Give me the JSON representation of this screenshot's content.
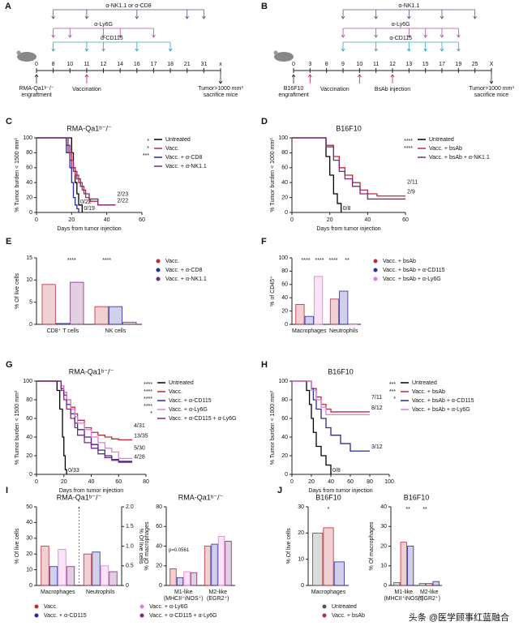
{
  "schemes": [
    {
      "label": "A",
      "days": [
        0,
        8,
        10,
        11,
        12,
        14,
        16,
        17,
        18,
        21,
        31,
        "x"
      ],
      "treatments": [
        {
          "name": "α-NK1.1 or α-CD8",
          "color": "#55557a",
          "on_days": [
            8,
            11,
            16,
            21,
            31
          ]
        },
        {
          "name": "α-Ly6G",
          "color": "#b04ca8",
          "on_days": [
            8,
            10,
            12,
            14,
            17
          ]
        },
        {
          "name": "α-CD115",
          "color": "#3a9fbf",
          "on_days": [
            8,
            11,
            12,
            16,
            18
          ]
        }
      ],
      "start_label": [
        "RMA-Qa1ᵇ⁻/⁻",
        "engraftment"
      ],
      "events": [
        {
          "name": "Vaccination",
          "on_days": [
            11
          ]
        }
      ],
      "end_label": [
        "Tumor>1000 mm³",
        "sacrifice mice"
      ]
    },
    {
      "label": "B",
      "days": [
        0,
        3,
        8,
        9,
        10,
        11,
        12,
        13,
        15,
        17,
        19,
        25,
        "X"
      ],
      "treatments": [
        {
          "name": "α-NK1.1",
          "color": "#55557a",
          "on_days": [
            9,
            11,
            13,
            17,
            25
          ]
        },
        {
          "name": "α-Ly6G",
          "color": "#b04ca8",
          "on_days": [
            9,
            11,
            13,
            15,
            17,
            19
          ]
        },
        {
          "name": "α-CD115",
          "color": "#3a9fbf",
          "on_days": [
            9,
            11,
            13,
            15,
            17,
            19
          ]
        }
      ],
      "start_label": [
        "B16F10",
        "engraftment"
      ],
      "events": [
        {
          "name": "Vaccination",
          "on_days": [
            3,
            10
          ]
        },
        {
          "name": "BsAb injection",
          "on_days": [
            12
          ]
        }
      ],
      "end_label": [
        "Tumor>1000 mm³",
        "sacrifice mice"
      ]
    }
  ],
  "chart_data": [
    {
      "type": "step",
      "label": "C",
      "title": "RMA-Qa1ᵇ⁻/⁻",
      "ylabel": "% Tumor burden < 1500 mm³",
      "xlabel": "Days from tumor injection",
      "xlim": [
        0,
        60
      ],
      "xticks": [
        0,
        20,
        40,
        60
      ],
      "ylim": [
        0,
        100
      ],
      "yticks": [
        0,
        20,
        40,
        60,
        80,
        100
      ],
      "legend": "right",
      "significance": [
        "*",
        "*",
        "***"
      ],
      "series": [
        {
          "name": "Untreated",
          "color": "#000000",
          "x": [
            0,
            18,
            20,
            21,
            22,
            23,
            24,
            26
          ],
          "values": [
            100,
            100,
            80,
            60,
            40,
            25,
            10,
            0
          ],
          "end_label": "0/19"
        },
        {
          "name": "Vacc.",
          "color": "#c0283c",
          "x": [
            0,
            17,
            18,
            20,
            22,
            24,
            26,
            28,
            30,
            35,
            45
          ],
          "values": [
            100,
            90,
            80,
            60,
            50,
            40,
            30,
            20,
            15,
            10,
            10
          ],
          "end_label": "2/22"
        },
        {
          "name": "Vacc. + α-CD8",
          "color": "#2a2a9a",
          "x": [
            0,
            17,
            19,
            20,
            21,
            22,
            23,
            24
          ],
          "values": [
            100,
            80,
            60,
            40,
            20,
            10,
            5,
            0
          ],
          "end_label": "0/22"
        },
        {
          "name": "Vacc. + α-NK1.1",
          "color": "#7b2a7b",
          "x": [
            0,
            18,
            19,
            21,
            23,
            25,
            27,
            30,
            35,
            45
          ],
          "values": [
            100,
            90,
            70,
            55,
            45,
            35,
            25,
            18,
            10,
            10
          ],
          "end_label": "2/23"
        }
      ]
    },
    {
      "type": "step",
      "label": "D",
      "title": "B16F10",
      "ylabel": "% Tumor burden < 1000 mm³",
      "xlabel": "Days from tumor injection",
      "xlim": [
        0,
        60
      ],
      "xticks": [
        0,
        20,
        40,
        60
      ],
      "ylim": [
        0,
        100
      ],
      "yticks": [
        0,
        20,
        40,
        60,
        80,
        100
      ],
      "legend": "right",
      "significance": [
        "****",
        "****"
      ],
      "series": [
        {
          "name": "Untreated",
          "color": "#000000",
          "x": [
            0,
            18,
            20,
            22,
            24,
            26
          ],
          "values": [
            100,
            75,
            50,
            25,
            12,
            0
          ],
          "end_label": "0/8"
        },
        {
          "name": "Vacc. + bsAb",
          "color": "#c0283c",
          "x": [
            0,
            18,
            22,
            25,
            28,
            32,
            36,
            40,
            45,
            60
          ],
          "values": [
            100,
            90,
            75,
            60,
            50,
            40,
            30,
            25,
            22,
            22
          ],
          "end_label": "2/9"
        },
        {
          "name": "Vacc. + bsAb + α-NK1.1",
          "color": "#7b2a7b",
          "x": [
            0,
            18,
            22,
            25,
            28,
            32,
            36,
            40,
            60
          ],
          "values": [
            100,
            88,
            70,
            55,
            45,
            35,
            25,
            18,
            18
          ],
          "end_label": "2/11"
        }
      ]
    },
    {
      "type": "bar",
      "label": "E",
      "ylabel": "% Of live cells",
      "categories": [
        "CD8⁺ T cells",
        "NK cells"
      ],
      "ylim": [
        0,
        15
      ],
      "yticks": [
        0,
        5,
        10,
        15
      ],
      "legend": "right",
      "significance": [
        "****",
        "****"
      ],
      "series": [
        {
          "name": "Vacc.",
          "color": "#c0283c",
          "values": [
            9,
            4
          ]
        },
        {
          "name": "Vacc. + α-CD8",
          "color": "#2a2a9a",
          "values": [
            0.2,
            4
          ]
        },
        {
          "name": "Vacc. + α-NK1.1",
          "color": "#7b2a7b",
          "values": [
            9.5,
            0.5
          ]
        }
      ]
    },
    {
      "type": "bar",
      "label": "F",
      "ylabel": "% of CD45⁺",
      "categories": [
        "Macrophages",
        "Neutrophils"
      ],
      "ylim": [
        0,
        100
      ],
      "yticks": [
        0,
        20,
        40,
        60,
        80,
        100
      ],
      "legend": "right",
      "significance": [
        "****",
        "****",
        "****",
        "**"
      ],
      "series": [
        {
          "name": "Vacc. + bsAb",
          "color": "#c0283c",
          "values": [
            30,
            38
          ]
        },
        {
          "name": "Vacc. + bsAb + α-CD115",
          "color": "#2a2a9a",
          "values": [
            12,
            50
          ]
        },
        {
          "name": "Vacc. + bsAb + α-Ly6G",
          "color": "#e87ad9",
          "values": [
            72,
            1
          ]
        }
      ]
    },
    {
      "type": "step",
      "label": "G",
      "title": "RMA-Qa1ᵇ⁻/⁻",
      "ylabel": "% Tumor burden < 1500 mm³",
      "xlabel": "Days from tumor injection",
      "xlim": [
        0,
        80
      ],
      "xticks": [
        0,
        20,
        40,
        60,
        80
      ],
      "ylim": [
        0,
        100
      ],
      "yticks": [
        0,
        20,
        40,
        60,
        80,
        100
      ],
      "legend": "right",
      "significance": [
        "****",
        "****",
        "****",
        "****",
        "*"
      ],
      "series": [
        {
          "name": "Untreated",
          "color": "#000000",
          "x": [
            0,
            15,
            17,
            19,
            20,
            21,
            22
          ],
          "values": [
            100,
            90,
            70,
            40,
            20,
            5,
            0
          ],
          "end_label": "0/33"
        },
        {
          "name": "Vacc.",
          "color": "#c0283c",
          "x": [
            0,
            18,
            20,
            22,
            25,
            28,
            30,
            35,
            40,
            45,
            50,
            55,
            60,
            65,
            70
          ],
          "values": [
            100,
            95,
            88,
            80,
            72,
            65,
            58,
            50,
            45,
            42,
            40,
            38,
            37,
            37,
            37
          ],
          "end_label": "13/35"
        },
        {
          "name": "Vacc. + α-CD115",
          "color": "#2a2a9a",
          "x": [
            0,
            18,
            20,
            22,
            25,
            28,
            30,
            35,
            40,
            45,
            50,
            55,
            60,
            70
          ],
          "values": [
            100,
            92,
            85,
            75,
            65,
            55,
            48,
            40,
            32,
            26,
            20,
            16,
            14,
            14
          ],
          "end_label": "4/28"
        },
        {
          "name": "Vacc. + α-Ly6G",
          "color": "#e87ad9",
          "x": [
            0,
            18,
            20,
            22,
            25,
            28,
            30,
            35,
            40,
            45,
            50,
            55,
            60,
            70
          ],
          "values": [
            100,
            95,
            88,
            80,
            70,
            62,
            55,
            48,
            40,
            34,
            28,
            24,
            17,
            17
          ],
          "end_label": "5/30"
        },
        {
          "name": "Vacc. + α-CD115 + α-Ly6G",
          "color": "#7b2a7b",
          "x": [
            0,
            18,
            20,
            22,
            25,
            28,
            30,
            35,
            40,
            45,
            50,
            55,
            60,
            70
          ],
          "values": [
            100,
            90,
            80,
            70,
            60,
            50,
            42,
            34,
            28,
            22,
            18,
            15,
            13,
            13
          ],
          "end_label": "4/31"
        }
      ]
    },
    {
      "type": "step",
      "label": "H",
      "title": "B16F10",
      "ylabel": "% Tumor burden < 1000 mm³",
      "xlabel": "Days from tumor injection",
      "xlim": [
        0,
        100
      ],
      "xticks": [
        0,
        20,
        40,
        60,
        80,
        100
      ],
      "ylim": [
        0,
        100
      ],
      "yticks": [
        0,
        20,
        40,
        60,
        80,
        100
      ],
      "legend": "right",
      "significance": [
        "***",
        "***",
        "*"
      ],
      "series": [
        {
          "name": "Untreated",
          "color": "#000000",
          "x": [
            0,
            15,
            18,
            20,
            22,
            25,
            30,
            35,
            40
          ],
          "values": [
            100,
            90,
            75,
            60,
            45,
            30,
            20,
            10,
            0
          ],
          "end_label": "0/8"
        },
        {
          "name": "Vacc. + bsAb",
          "color": "#c0283c",
          "x": [
            0,
            20,
            25,
            30,
            35,
            40,
            80
          ],
          "values": [
            100,
            92,
            83,
            75,
            70,
            67,
            67
          ],
          "end_label": "8/12"
        },
        {
          "name": "Vacc. + bsAb + α-CD115",
          "color": "#2a2a9a",
          "x": [
            0,
            20,
            22,
            25,
            30,
            35,
            40,
            50,
            60,
            80
          ],
          "values": [
            100,
            92,
            80,
            70,
            60,
            50,
            42,
            33,
            25,
            25
          ],
          "end_label": "3/12"
        },
        {
          "name": "Vacc. + bsAb + α-Ly6G",
          "color": "#e87ad9",
          "x": [
            0,
            20,
            25,
            30,
            35,
            80
          ],
          "values": [
            100,
            90,
            80,
            72,
            64,
            64
          ],
          "end_label": "7/11"
        }
      ]
    },
    {
      "type": "bar",
      "label": "I",
      "title": "RMA-Qa1ᵇ⁻/⁻",
      "ylabel": "% Of live cells",
      "y2label": "% Of live cells",
      "categories": [
        "Macrophages",
        "Neutrophils"
      ],
      "category_axis": [
        "y",
        "y2"
      ],
      "ylim": [
        0,
        50
      ],
      "yticks": [
        0,
        10,
        20,
        30,
        40,
        50
      ],
      "y2lim": [
        0,
        2
      ],
      "y2ticks": [
        0,
        0.5,
        {
          "value": 1,
          "label": "1.0"
        },
        1.5,
        {
          "value": 2,
          "label": "2.0"
        }
      ],
      "legend": "bottom",
      "significance": [
        "*"
      ],
      "series": [
        {
          "name": "Vacc.",
          "color": "#c0283c",
          "values": [
            25,
            0.8
          ]
        },
        {
          "name": "Vacc. + α-CD115",
          "color": "#2a2a9a",
          "values": [
            12,
            0.85
          ]
        },
        {
          "name": "Vacc. + α-Ly6G",
          "color": "#e87ad9",
          "values": [
            23,
            0.5
          ]
        },
        {
          "name": "Vacc. + α-CD115 + α-Ly6G",
          "color": "#7b2a7b",
          "values": [
            12,
            0.35
          ]
        }
      ]
    },
    {
      "type": "bar",
      "title": "RMA-Qa1ᵇ⁻/⁻",
      "ylabel": "% Of macrophages",
      "categories": [
        "M1-like",
        "M2-like"
      ],
      "category_sublabels": [
        "(MHCII⁺iNOS⁺)",
        "(EGR2⁺)"
      ],
      "ylim": [
        0,
        80
      ],
      "yticks": [
        0,
        20,
        40,
        60,
        80
      ],
      "annotations": [
        "p=0.0561"
      ],
      "series": [
        {
          "color": "#c0283c",
          "values": [
            17,
            40
          ]
        },
        {
          "color": "#2a2a9a",
          "values": [
            8,
            42
          ]
        },
        {
          "color": "#e87ad9",
          "values": [
            14,
            50
          ]
        },
        {
          "color": "#7b2a7b",
          "values": [
            13,
            45
          ]
        }
      ]
    },
    {
      "type": "bar",
      "label": "J",
      "title": "B16F10",
      "ylabel": "% Of live cells",
      "categories": [
        "Macrophages"
      ],
      "ylim": [
        0,
        30
      ],
      "yticks": [
        0,
        10,
        20,
        30
      ],
      "legend": "bottom",
      "significance": [
        "*"
      ],
      "series": [
        {
          "name": "Untreated",
          "color": "#555555",
          "values": [
            20
          ]
        },
        {
          "name": "Vacc. + bsAb",
          "color": "#c0283c",
          "values": [
            22
          ]
        },
        {
          "color": "#2a2a9a",
          "values": [
            9
          ]
        }
      ]
    },
    {
      "type": "bar",
      "title": "B16F10",
      "ylabel": "% Of macrophages",
      "categories": [
        "M1-like",
        "M2-like"
      ],
      "category_sublabels": [
        "(MHCII⁺iNOS⁺)",
        "(EGR2⁺)"
      ],
      "ylim": [
        0,
        40
      ],
      "yticks": [
        0,
        10,
        20,
        30,
        40
      ],
      "significance": [
        "**",
        "**"
      ],
      "series": [
        {
          "color": "#555555",
          "values": [
            1.5,
            1
          ]
        },
        {
          "color": "#c0283c",
          "values": [
            22,
            1
          ]
        },
        {
          "color": "#2a2a9a",
          "values": [
            20,
            2
          ]
        }
      ]
    }
  ],
  "watermark": "头条 @医学顾事红蓝融合"
}
